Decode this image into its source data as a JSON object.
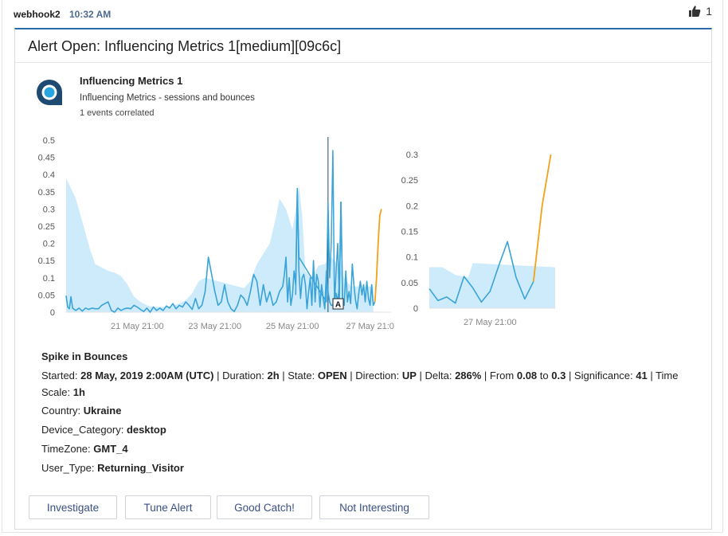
{
  "message": {
    "sender": "webhook2",
    "time": "10:32 AM",
    "reaction": {
      "icon": "thumbs-up-icon",
      "count": "1"
    }
  },
  "alert": {
    "title": "Alert Open: Influencing Metrics 1[medium][09c6c]",
    "metric_name": "Influencing Metrics 1",
    "metric_description": "Influencing Metrics - sessions and bounces",
    "correlated": "1 events correlated",
    "section_title": "Spike in Bounces",
    "details": {
      "started_label": "Started: ",
      "started_value": "28 May, 2019 2:00AM (UTC)",
      "duration_label": " | Duration: ",
      "duration_value": "2h",
      "state_label": " | State: ",
      "state_value": "OPEN",
      "direction_label": " | Direction: ",
      "direction_value": "UP",
      "delta_label": " | Delta: ",
      "delta_value": "286%",
      "from_label": " | From ",
      "from_value": "0.08",
      "to_label": " to ",
      "to_value": "0.3",
      "significance_label": " | Significance: ",
      "significance_value": "41",
      "timescale_label": " | Time Scale: ",
      "timescale_value": "1h"
    },
    "dimensions": [
      {
        "label": "Country: ",
        "value": "Ukraine"
      },
      {
        "label": "Device_Category: ",
        "value": "desktop"
      },
      {
        "label": "TimeZone: ",
        "value": "GMT_4"
      },
      {
        "label": "User_Type: ",
        "value": "Returning_Visitor"
      }
    ],
    "buttons": {
      "investigate": "Investigate",
      "tune": "Tune Alert",
      "good_catch": "Good Catch!",
      "not_interesting": "Not Interesting"
    }
  },
  "colors": {
    "accent": "#2b6aa8",
    "line": "#3aa3d8",
    "band": "#cdebfa",
    "anomaly": "#f2a11a",
    "button_text": "#3a4f86"
  },
  "chart_data": [
    {
      "type": "line",
      "xlabel": "",
      "ylabel": "",
      "x_tick_labels": [
        "21 May 21:00",
        "23 May 21:00",
        "25 May 21:00",
        "27 May 21:0"
      ],
      "x_tick_hours": [
        44,
        92,
        140,
        188
      ],
      "y_ticks": [
        0,
        0.05,
        0.1,
        0.15,
        0.2,
        0.25,
        0.3,
        0.35,
        0.4,
        0.45,
        0.5
      ],
      "ylim": [
        0,
        0.5
      ],
      "xlim_hours": [
        0,
        201
      ],
      "annotation": {
        "label": "A",
        "hour": 168
      },
      "event_marker_hour": 162,
      "baseline_band": {
        "x_hours": [
          0,
          3,
          6,
          9,
          12,
          15,
          18,
          22,
          26,
          30,
          34,
          38,
          42,
          46,
          50,
          54,
          58,
          62,
          66,
          70,
          74,
          78,
          82,
          86,
          90,
          94,
          98,
          102,
          106,
          110,
          114,
          118,
          122,
          126,
          130,
          132,
          136,
          140,
          142,
          144,
          146,
          148,
          152,
          156,
          160,
          164,
          168,
          172,
          176,
          180,
          184,
          188,
          190
        ],
        "upper": [
          0.39,
          0.36,
          0.33,
          0.28,
          0.23,
          0.18,
          0.14,
          0.13,
          0.12,
          0.115,
          0.105,
          0.08,
          0.045,
          0.03,
          0.02,
          0.015,
          0.015,
          0.015,
          0.02,
          0.025,
          0.035,
          0.055,
          0.09,
          0.1,
          0.095,
          0.09,
          0.085,
          0.08,
          0.075,
          0.07,
          0.09,
          0.14,
          0.17,
          0.2,
          0.28,
          0.33,
          0.3,
          0.24,
          0.3,
          0.37,
          0.28,
          0.12,
          0.1,
          0.135,
          0.14,
          0.16,
          0.14,
          0.1,
          0.075,
          0.075,
          0.075,
          0.075,
          0.075
        ]
      },
      "series": [
        {
          "values": [
            [
              0,
              0.048
            ],
            [
              1,
              0.015
            ],
            [
              2,
              0.01
            ],
            [
              3,
              0.045
            ],
            [
              4,
              0.012
            ],
            [
              6,
              0.005
            ],
            [
              8,
              0.012
            ],
            [
              10,
              0.003
            ],
            [
              12,
              0.012
            ],
            [
              14,
              0.008
            ],
            [
              16,
              0.012
            ],
            [
              18,
              0.01
            ],
            [
              20,
              0.01
            ],
            [
              22,
              0.02
            ],
            [
              24,
              0.025
            ],
            [
              26,
              0.03
            ],
            [
              28,
              0.005
            ],
            [
              30,
              0.0
            ],
            [
              32,
              0.012
            ],
            [
              34,
              0.005
            ],
            [
              36,
              0.01
            ],
            [
              38,
              0.012
            ],
            [
              40,
              0.01
            ],
            [
              42,
              0.02
            ],
            [
              44,
              0.015
            ],
            [
              46,
              0.008
            ],
            [
              48,
              0.002
            ],
            [
              50,
              0.012
            ],
            [
              52,
              0.0
            ],
            [
              54,
              0.015
            ],
            [
              56,
              0.005
            ],
            [
              58,
              0.012
            ],
            [
              60,
              0.005
            ],
            [
              62,
              0.018
            ],
            [
              64,
              0.012
            ],
            [
              66,
              0.025
            ],
            [
              68,
              0.01
            ],
            [
              70,
              0.02
            ],
            [
              72,
              0.015
            ],
            [
              74,
              0.03
            ],
            [
              76,
              0.02
            ],
            [
              78,
              0.008
            ],
            [
              80,
              0.04
            ],
            [
              82,
              0.01
            ],
            [
              84,
              0.02
            ],
            [
              86,
              0.06
            ],
            [
              88,
              0.16
            ],
            [
              90,
              0.11
            ],
            [
              92,
              0.06
            ],
            [
              94,
              0.02
            ],
            [
              96,
              0.03
            ],
            [
              98,
              0.08
            ],
            [
              100,
              0.03
            ],
            [
              102,
              0.01
            ],
            [
              104,
              0.002
            ],
            [
              106,
              0.02
            ],
            [
              108,
              0.05
            ],
            [
              110,
              0.04
            ],
            [
              112,
              0.02
            ],
            [
              114,
              0.06
            ],
            [
              116,
              0.11
            ],
            [
              118,
              0.09
            ],
            [
              120,
              0.02
            ],
            [
              122,
              0.08
            ],
            [
              124,
              0.03
            ],
            [
              126,
              0.06
            ],
            [
              128,
              0.02
            ],
            [
              130,
              0.03
            ],
            [
              132,
              0.06
            ],
            [
              134,
              0.075
            ],
            [
              135,
              0.11
            ],
            [
              136,
              0.16
            ],
            [
              137,
              0.03
            ],
            [
              138,
              0.1
            ],
            [
              139,
              0.02
            ],
            [
              140,
              0.05
            ],
            [
              141,
              0.12
            ],
            [
              142,
              0.08
            ],
            [
              143,
              0.35
            ],
            [
              144,
              0.12
            ],
            [
              145,
              0.04
            ],
            [
              146,
              0.1
            ],
            [
              147,
              0.11
            ],
            [
              148,
              0.08
            ],
            [
              149,
              0.01
            ],
            [
              150,
              0.06
            ],
            [
              151,
              0.1
            ],
            [
              152,
              0.02
            ],
            [
              153,
              0.15
            ],
            [
              154,
              0.03
            ],
            [
              155,
              0.11
            ],
            [
              156,
              0.09
            ],
            [
              157,
              0.015
            ],
            [
              158,
              0.08
            ],
            [
              159,
              0.04
            ],
            [
              160,
              0.01
            ],
            [
              161,
              0.12
            ],
            [
              162,
              0.06
            ],
            [
              163,
              0.03
            ],
            [
              164,
              0.02
            ],
            [
              165,
              0.02
            ],
            [
              166,
              0.035
            ],
            [
              167,
              0.055
            ],
            [
              168,
              0.03
            ],
            [
              169,
              0.08
            ],
            [
              170,
              0.32
            ],
            [
              171,
              0.04
            ],
            [
              172,
              0.02
            ],
            [
              173,
              0.12
            ],
            [
              174,
              0.03
            ],
            [
              175,
              0.06
            ],
            [
              176,
              0.025
            ],
            [
              177,
              0.14
            ],
            [
              178,
              0.08
            ],
            [
              179,
              0.035
            ],
            [
              180,
              0.01
            ],
            [
              181,
              0.055
            ],
            [
              182,
              0.09
            ],
            [
              183,
              0.05
            ],
            [
              184,
              0.08
            ],
            [
              185,
              0.03
            ],
            [
              186,
              0.09
            ],
            [
              187,
              0.04
            ],
            [
              188,
              0.02
            ],
            [
              189,
              0.08
            ],
            [
              190,
              0.02
            ],
            [
              191,
              0.03
            ]
          ]
        }
      ],
      "anomaly_points": [
        [
          191,
          0.03
        ],
        [
          192,
          0.1
        ],
        [
          193,
          0.2
        ],
        [
          194,
          0.28
        ],
        [
          195,
          0.3
        ]
      ],
      "spikes": [
        [
          142,
          0.05
        ],
        [
          143,
          0.36
        ],
        [
          144,
          0.16
        ],
        [
          161,
          0.03
        ],
        [
          162,
          0.32
        ],
        [
          163,
          0.1
        ],
        [
          164,
          0.2
        ],
        [
          165,
          0.47
        ],
        [
          166,
          0.02
        ],
        [
          167,
          0.12
        ],
        [
          168,
          0.2
        ],
        [
          169,
          0.03
        ],
        [
          170,
          0.32
        ],
        [
          171,
          0.04
        ]
      ]
    },
    {
      "type": "line",
      "xlabel": "",
      "ylabel": "",
      "x_tick_labels": [
        "27 May 21:00"
      ],
      "x_tick_hours": [
        7
      ],
      "y_ticks": [
        0,
        0.05,
        0.1,
        0.15,
        0.2,
        0.25,
        0.3
      ],
      "ylim": [
        0,
        0.3
      ],
      "xlim_hours": [
        0,
        14.5
      ],
      "baseline_band": {
        "x_hours": [
          0,
          1.5,
          3,
          4.5,
          5,
          14.5
        ],
        "upper": [
          0.08,
          0.08,
          0.065,
          0.06,
          0.088,
          0.08
        ]
      },
      "series": [
        {
          "values": [
            [
              0,
              0.038
            ],
            [
              1,
              0.015
            ],
            [
              2,
              0.022
            ],
            [
              3,
              0.01
            ],
            [
              4,
              0.062
            ],
            [
              5,
              0.04
            ],
            [
              6,
              0.012
            ],
            [
              7,
              0.033
            ],
            [
              8,
              0.083
            ],
            [
              9,
              0.13
            ],
            [
              10,
              0.06
            ],
            [
              11,
              0.018
            ],
            [
              12,
              0.052
            ]
          ]
        }
      ],
      "anomaly_points": [
        [
          12,
          0.052
        ],
        [
          13,
          0.2
        ],
        [
          14,
          0.3
        ]
      ]
    }
  ]
}
